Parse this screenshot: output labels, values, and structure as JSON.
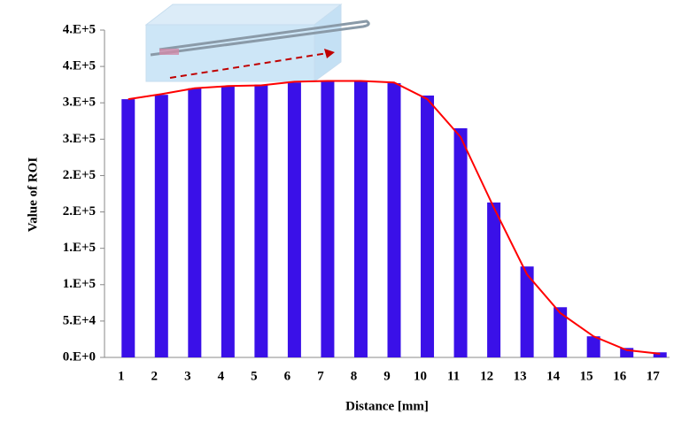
{
  "chart_data": {
    "type": "bar",
    "x_label": "Distance [mm]",
    "y_label": "Value of ROI",
    "categories": [
      "1",
      "2",
      "3",
      "4",
      "5",
      "6",
      "7",
      "8",
      "9",
      "10",
      "11",
      "12",
      "13",
      "14",
      "15",
      "16",
      "17"
    ],
    "series": [
      {
        "type": "bar",
        "color": "#3a10e8",
        "values": [
          355000,
          361000,
          370000,
          373000,
          375000,
          378000,
          380000,
          380000,
          377000,
          360000,
          315000,
          213000,
          125000,
          69000,
          29000,
          13000,
          7000
        ]
      },
      {
        "type": "line",
        "color": "#ff0000",
        "values": [
          355000,
          362000,
          370000,
          373000,
          374000,
          379000,
          380000,
          380000,
          378000,
          355000,
          303000,
          206000,
          114000,
          61000,
          29000,
          10000,
          5000
        ]
      }
    ],
    "ylim": [
      0,
      450000
    ],
    "yticks": [
      {
        "value": 0,
        "label": "0.E+0"
      },
      {
        "value": 50000,
        "label": "5.E+4"
      },
      {
        "value": 100000,
        "label": "1.E+5"
      },
      {
        "value": 150000,
        "label": "1.E+5"
      },
      {
        "value": 200000,
        "label": "2.E+5"
      },
      {
        "value": 250000,
        "label": "2.E+5"
      },
      {
        "value": 300000,
        "label": "3.E+5"
      },
      {
        "value": 350000,
        "label": "3.E+5"
      },
      {
        "value": 400000,
        "label": "4.E+5"
      },
      {
        "value": 450000,
        "label": "4.E+5"
      }
    ]
  }
}
